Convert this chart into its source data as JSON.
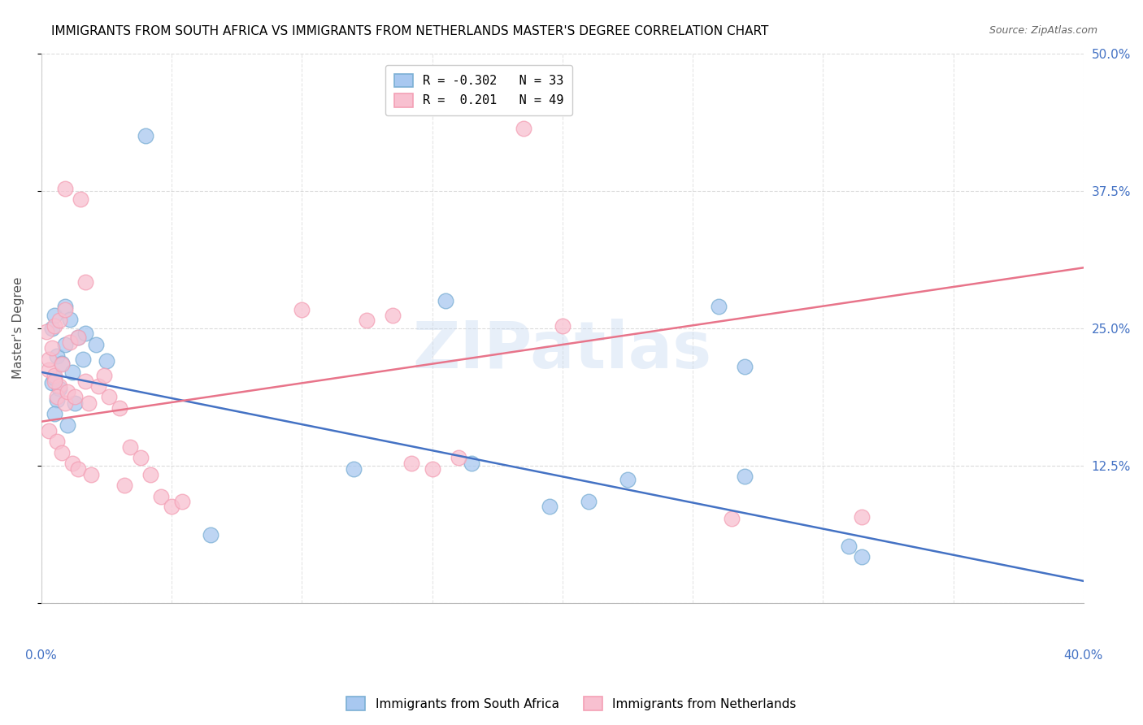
{
  "title": "IMMIGRANTS FROM SOUTH AFRICA VS IMMIGRANTS FROM NETHERLANDS MASTER'S DEGREE CORRELATION CHART",
  "source": "Source: ZipAtlas.com",
  "ylabel": "Master's Degree",
  "yticks": [
    0.0,
    0.125,
    0.25,
    0.375,
    0.5
  ],
  "ytick_labels": [
    "",
    "12.5%",
    "25.0%",
    "37.5%",
    "50.0%"
  ],
  "xlim": [
    0.0,
    0.4
  ],
  "ylim": [
    0.0,
    0.5
  ],
  "watermark": "ZIPatlas",
  "legend_label1": "R = -0.302   N = 33",
  "legend_label2": "R =  0.201   N = 49",
  "series1_name": "Immigrants from South Africa",
  "series2_name": "Immigrants from Netherlands",
  "series1_face_color": "#a8c8f0",
  "series1_edge_color": "#7bafd4",
  "series2_face_color": "#f8c0d0",
  "series2_edge_color": "#f4a0b5",
  "trend1_color": "#4472c4",
  "trend2_color": "#e8748a",
  "trend1_x": [
    0.0,
    0.4
  ],
  "trend1_y": [
    0.21,
    0.02
  ],
  "trend2_x": [
    0.0,
    0.4
  ],
  "trend2_y": [
    0.165,
    0.305
  ],
  "background_color": "#ffffff",
  "grid_color": "#cccccc",
  "title_color": "#000000",
  "axis_label_color": "#4472c4",
  "title_fontsize": 11,
  "scatter1_data": [
    [
      0.006,
      0.225
    ],
    [
      0.009,
      0.235
    ],
    [
      0.004,
      0.25
    ],
    [
      0.014,
      0.242
    ],
    [
      0.017,
      0.245
    ],
    [
      0.004,
      0.2
    ],
    [
      0.008,
      0.218
    ],
    [
      0.005,
      0.205
    ],
    [
      0.007,
      0.195
    ],
    [
      0.012,
      0.21
    ],
    [
      0.016,
      0.222
    ],
    [
      0.021,
      0.235
    ],
    [
      0.025,
      0.22
    ],
    [
      0.005,
      0.262
    ],
    [
      0.009,
      0.27
    ],
    [
      0.011,
      0.258
    ],
    [
      0.006,
      0.185
    ],
    [
      0.013,
      0.182
    ],
    [
      0.005,
      0.172
    ],
    [
      0.01,
      0.162
    ],
    [
      0.04,
      0.425
    ],
    [
      0.155,
      0.275
    ],
    [
      0.26,
      0.27
    ],
    [
      0.27,
      0.215
    ],
    [
      0.27,
      0.115
    ],
    [
      0.165,
      0.127
    ],
    [
      0.12,
      0.122
    ],
    [
      0.225,
      0.112
    ],
    [
      0.21,
      0.092
    ],
    [
      0.195,
      0.088
    ],
    [
      0.31,
      0.052
    ],
    [
      0.315,
      0.042
    ],
    [
      0.065,
      0.062
    ]
  ],
  "scatter2_data": [
    [
      0.003,
      0.212
    ],
    [
      0.005,
      0.207
    ],
    [
      0.007,
      0.197
    ],
    [
      0.006,
      0.188
    ],
    [
      0.009,
      0.182
    ],
    [
      0.003,
      0.222
    ],
    [
      0.008,
      0.217
    ],
    [
      0.005,
      0.202
    ],
    [
      0.01,
      0.192
    ],
    [
      0.013,
      0.188
    ],
    [
      0.009,
      0.377
    ],
    [
      0.015,
      0.367
    ],
    [
      0.017,
      0.292
    ],
    [
      0.002,
      0.247
    ],
    [
      0.005,
      0.252
    ],
    [
      0.007,
      0.257
    ],
    [
      0.009,
      0.267
    ],
    [
      0.004,
      0.232
    ],
    [
      0.011,
      0.237
    ],
    [
      0.014,
      0.242
    ],
    [
      0.003,
      0.157
    ],
    [
      0.006,
      0.147
    ],
    [
      0.008,
      0.137
    ],
    [
      0.012,
      0.127
    ],
    [
      0.014,
      0.122
    ],
    [
      0.019,
      0.117
    ],
    [
      0.017,
      0.202
    ],
    [
      0.022,
      0.197
    ],
    [
      0.024,
      0.207
    ],
    [
      0.026,
      0.188
    ],
    [
      0.018,
      0.182
    ],
    [
      0.03,
      0.177
    ],
    [
      0.034,
      0.142
    ],
    [
      0.038,
      0.132
    ],
    [
      0.032,
      0.107
    ],
    [
      0.042,
      0.117
    ],
    [
      0.046,
      0.097
    ],
    [
      0.05,
      0.088
    ],
    [
      0.054,
      0.092
    ],
    [
      0.1,
      0.267
    ],
    [
      0.125,
      0.257
    ],
    [
      0.135,
      0.262
    ],
    [
      0.142,
      0.127
    ],
    [
      0.15,
      0.122
    ],
    [
      0.16,
      0.132
    ],
    [
      0.185,
      0.432
    ],
    [
      0.2,
      0.252
    ],
    [
      0.265,
      0.077
    ],
    [
      0.315,
      0.078
    ]
  ]
}
